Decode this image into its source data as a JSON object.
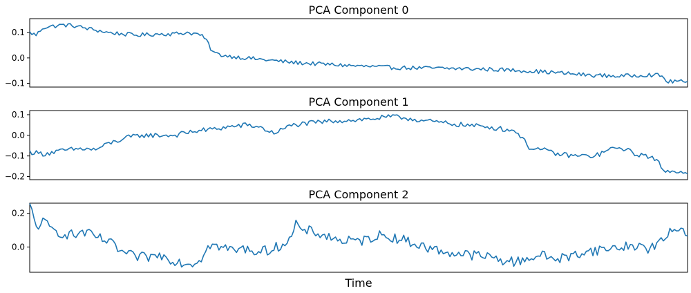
{
  "figure": {
    "xlabel": "Time",
    "line_color": "#1f77b4"
  },
  "chart_data": [
    {
      "type": "line",
      "title": "PCA Component 0",
      "xlabel": "",
      "ylabel": "",
      "xlim": [
        0,
        1
      ],
      "ylim": [
        -0.115,
        0.155
      ],
      "yticks": [
        -0.1,
        0.0,
        0.1
      ],
      "ytick_labels": [
        "−0.1",
        "0.0",
        "0.1"
      ],
      "grid": false,
      "knots": [
        [
          0.0,
          0.1
        ],
        [
          0.01,
          0.09
        ],
        [
          0.02,
          0.12
        ],
        [
          0.035,
          0.125
        ],
        [
          0.05,
          0.13
        ],
        [
          0.065,
          0.128
        ],
        [
          0.08,
          0.12
        ],
        [
          0.1,
          0.11
        ],
        [
          0.12,
          0.1
        ],
        [
          0.14,
          0.095
        ],
        [
          0.16,
          0.09
        ],
        [
          0.18,
          0.092
        ],
        [
          0.2,
          0.095
        ],
        [
          0.22,
          0.095
        ],
        [
          0.24,
          0.1
        ],
        [
          0.26,
          0.092
        ],
        [
          0.265,
          0.075
        ],
        [
          0.27,
          0.072
        ],
        [
          0.272,
          0.05
        ],
        [
          0.278,
          0.025
        ],
        [
          0.285,
          0.015
        ],
        [
          0.3,
          0.008
        ],
        [
          0.32,
          0.002
        ],
        [
          0.36,
          -0.008
        ],
        [
          0.4,
          -0.018
        ],
        [
          0.45,
          -0.025
        ],
        [
          0.5,
          -0.032
        ],
        [
          0.55,
          -0.038
        ],
        [
          0.6,
          -0.04
        ],
        [
          0.65,
          -0.042
        ],
        [
          0.7,
          -0.045
        ],
        [
          0.75,
          -0.05
        ],
        [
          0.8,
          -0.058
        ],
        [
          0.85,
          -0.068
        ],
        [
          0.9,
          -0.072
        ],
        [
          0.94,
          -0.066
        ],
        [
          0.96,
          -0.07
        ],
        [
          0.97,
          -0.095
        ],
        [
          0.985,
          -0.09
        ],
        [
          1.0,
          -0.1
        ]
      ],
      "noise_amplitude": 0.008,
      "n_points": 310
    },
    {
      "type": "line",
      "title": "PCA Component 1",
      "xlabel": "",
      "ylabel": "",
      "xlim": [
        0,
        1
      ],
      "ylim": [
        -0.215,
        0.12
      ],
      "yticks": [
        -0.2,
        -0.1,
        0.0,
        0.1
      ],
      "ytick_labels": [
        "−0.2",
        "−0.1",
        "0.0",
        "0.1"
      ],
      "grid": false,
      "knots": [
        [
          0.0,
          -0.08
        ],
        [
          0.02,
          -0.09
        ],
        [
          0.04,
          -0.08
        ],
        [
          0.06,
          -0.07
        ],
        [
          0.08,
          -0.065
        ],
        [
          0.1,
          -0.07
        ],
        [
          0.12,
          -0.04
        ],
        [
          0.13,
          -0.03
        ],
        [
          0.15,
          -0.01
        ],
        [
          0.17,
          0.0
        ],
        [
          0.2,
          0.0
        ],
        [
          0.22,
          0.0
        ],
        [
          0.25,
          0.02
        ],
        [
          0.28,
          0.03
        ],
        [
          0.3,
          0.04
        ],
        [
          0.33,
          0.05
        ],
        [
          0.35,
          0.04
        ],
        [
          0.37,
          0.01
        ],
        [
          0.4,
          0.05
        ],
        [
          0.43,
          0.06
        ],
        [
          0.46,
          0.07
        ],
        [
          0.5,
          0.075
        ],
        [
          0.52,
          0.08
        ],
        [
          0.55,
          0.09
        ],
        [
          0.57,
          0.085
        ],
        [
          0.6,
          0.07
        ],
        [
          0.63,
          0.06
        ],
        [
          0.66,
          0.05
        ],
        [
          0.7,
          0.04
        ],
        [
          0.72,
          0.03
        ],
        [
          0.74,
          0.02
        ],
        [
          0.75,
          -0.02
        ],
        [
          0.76,
          -0.06
        ],
        [
          0.78,
          -0.07
        ],
        [
          0.8,
          -0.09
        ],
        [
          0.83,
          -0.1
        ],
        [
          0.86,
          -0.1
        ],
        [
          0.88,
          -0.07
        ],
        [
          0.9,
          -0.06
        ],
        [
          0.92,
          -0.09
        ],
        [
          0.94,
          -0.1
        ],
        [
          0.955,
          -0.13
        ],
        [
          0.965,
          -0.17
        ],
        [
          0.975,
          -0.18
        ],
        [
          0.985,
          -0.17
        ],
        [
          1.0,
          -0.18
        ]
      ],
      "noise_amplitude": 0.012,
      "n_points": 300
    },
    {
      "type": "line",
      "title": "PCA Component 2",
      "xlabel": "",
      "ylabel": "",
      "xlim": [
        0,
        1
      ],
      "ylim": [
        -0.15,
        0.26
      ],
      "yticks": [
        0.0,
        0.2
      ],
      "ytick_labels": [
        "0.0",
        "0.2"
      ],
      "grid": false,
      "knots": [
        [
          0.0,
          0.25
        ],
        [
          0.01,
          0.12
        ],
        [
          0.02,
          0.15
        ],
        [
          0.035,
          0.1
        ],
        [
          0.05,
          0.08
        ],
        [
          0.07,
          0.07
        ],
        [
          0.08,
          0.09
        ],
        [
          0.1,
          0.06
        ],
        [
          0.12,
          0.03
        ],
        [
          0.14,
          -0.03
        ],
        [
          0.16,
          -0.06
        ],
        [
          0.18,
          -0.06
        ],
        [
          0.2,
          -0.05
        ],
        [
          0.22,
          -0.08
        ],
        [
          0.24,
          -0.1
        ],
        [
          0.26,
          -0.08
        ],
        [
          0.27,
          0.02
        ],
        [
          0.29,
          0.0
        ],
        [
          0.31,
          -0.02
        ],
        [
          0.33,
          -0.01
        ],
        [
          0.35,
          -0.03
        ],
        [
          0.37,
          -0.01
        ],
        [
          0.39,
          0.03
        ],
        [
          0.4,
          0.06
        ],
        [
          0.405,
          0.17
        ],
        [
          0.41,
          0.08
        ],
        [
          0.42,
          0.1
        ],
        [
          0.44,
          0.08
        ],
        [
          0.47,
          0.04
        ],
        [
          0.5,
          0.03
        ],
        [
          0.53,
          0.07
        ],
        [
          0.55,
          0.06
        ],
        [
          0.57,
          0.04
        ],
        [
          0.6,
          0.0
        ],
        [
          0.62,
          -0.02
        ],
        [
          0.65,
          -0.04
        ],
        [
          0.68,
          -0.05
        ],
        [
          0.7,
          -0.06
        ],
        [
          0.72,
          -0.08
        ],
        [
          0.74,
          -0.09
        ],
        [
          0.76,
          -0.06
        ],
        [
          0.78,
          -0.05
        ],
        [
          0.8,
          -0.07
        ],
        [
          0.82,
          -0.06
        ],
        [
          0.84,
          -0.03
        ],
        [
          0.86,
          -0.02
        ],
        [
          0.88,
          -0.01
        ],
        [
          0.9,
          0.0
        ],
        [
          0.92,
          0.01
        ],
        [
          0.94,
          -0.01
        ],
        [
          0.96,
          0.03
        ],
        [
          0.97,
          0.07
        ],
        [
          0.985,
          0.12
        ],
        [
          1.0,
          0.08
        ]
      ],
      "noise_amplitude": 0.03,
      "n_points": 300
    }
  ]
}
